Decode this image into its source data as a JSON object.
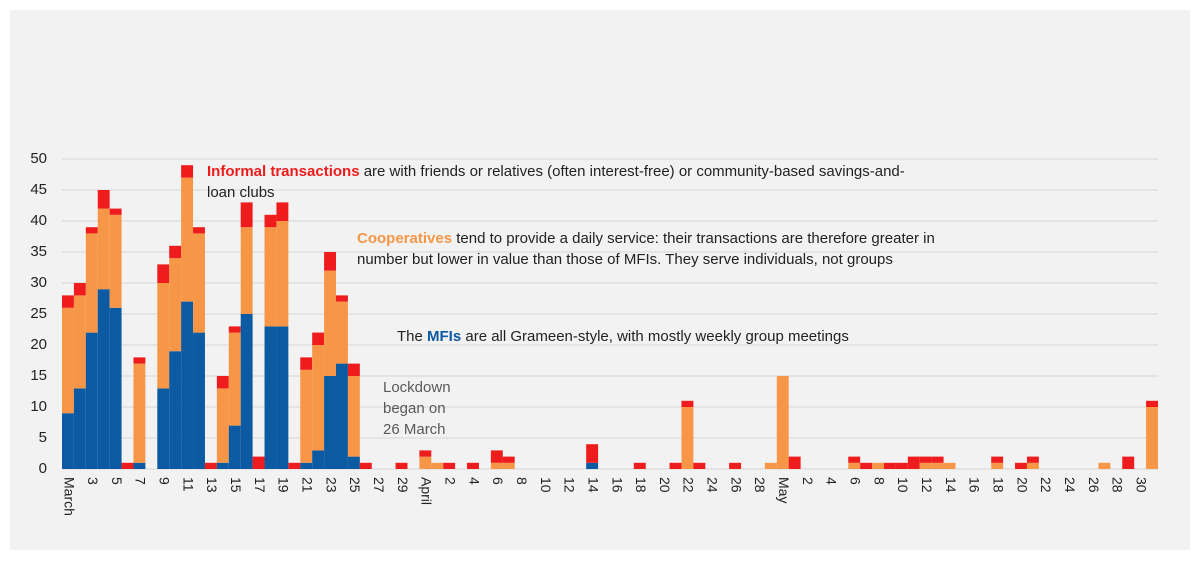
{
  "chart_data": {
    "type": "stacked-bar",
    "categories": [
      "March",
      null,
      "3",
      null,
      "5",
      null,
      "7",
      null,
      "9",
      null,
      "11",
      null,
      "13",
      null,
      "15",
      null,
      "17",
      null,
      "19",
      null,
      "21",
      null,
      "23",
      null,
      "25",
      null,
      "27",
      null,
      "29",
      null,
      "April",
      null,
      "2",
      null,
      "4",
      null,
      "6",
      null,
      "8",
      null,
      "10",
      null,
      "12",
      null,
      "14",
      null,
      "16",
      null,
      "18",
      null,
      "20",
      null,
      "22",
      null,
      "24",
      null,
      "26",
      null,
      "28",
      null,
      "May",
      null,
      "2",
      null,
      "4",
      null,
      "6",
      null,
      "8",
      null,
      "10",
      null,
      "12",
      null,
      "14",
      null,
      "16",
      null,
      "18",
      null,
      "20",
      null,
      "22",
      null,
      "24",
      null,
      "26",
      null,
      "28",
      null,
      "30",
      null
    ],
    "series": [
      {
        "name": "MFIs",
        "color": "#0b5aa2",
        "values": [
          9,
          13,
          22,
          29,
          26,
          0,
          1,
          0,
          13,
          19,
          27,
          22,
          0,
          1,
          7,
          25,
          0,
          23,
          23,
          0,
          1,
          3,
          15,
          17,
          2,
          0,
          0,
          0,
          0,
          0,
          0,
          0,
          0,
          0,
          0,
          0,
          0,
          0,
          0,
          0,
          0,
          0,
          0,
          0,
          1,
          0,
          0,
          0,
          0,
          0,
          0,
          0,
          0,
          0,
          0,
          0,
          0,
          0,
          0,
          0,
          0,
          0,
          0,
          0,
          0,
          0,
          0,
          0,
          0,
          0,
          0,
          0,
          0,
          0,
          0,
          0,
          0,
          0,
          0,
          0,
          0,
          0,
          0,
          0,
          0,
          0,
          0,
          0,
          0,
          0,
          0,
          0
        ]
      },
      {
        "name": "Cooperatives",
        "color": "#f79646",
        "values": [
          17,
          15,
          16,
          13,
          15,
          0,
          16,
          0,
          17,
          15,
          20,
          16,
          0,
          12,
          15,
          14,
          0,
          16,
          17,
          0,
          15,
          17,
          17,
          10,
          13,
          0,
          0,
          0,
          0,
          0,
          2,
          1,
          0,
          0,
          0,
          0,
          1,
          1,
          0,
          0,
          0,
          0,
          0,
          0,
          0,
          0,
          0,
          0,
          0,
          0,
          0,
          0,
          10,
          0,
          0,
          0,
          0,
          0,
          0,
          1,
          15,
          0,
          0,
          0,
          0,
          0,
          1,
          0,
          1,
          0,
          0,
          0,
          1,
          1,
          1,
          0,
          0,
          0,
          1,
          0,
          0,
          1,
          0,
          0,
          0,
          0,
          0,
          1,
          0,
          0,
          0,
          10
        ]
      },
      {
        "name": "Informal transactions",
        "color": "#ee1c1c",
        "values": [
          2,
          2,
          1,
          3,
          1,
          1,
          1,
          0,
          3,
          2,
          2,
          1,
          1,
          2,
          1,
          4,
          2,
          2,
          3,
          1,
          2,
          2,
          3,
          1,
          2,
          1,
          0,
          0,
          1,
          0,
          1,
          0,
          1,
          0,
          1,
          0,
          2,
          1,
          0,
          0,
          0,
          0,
          0,
          0,
          3,
          0,
          0,
          0,
          1,
          0,
          0,
          1,
          1,
          1,
          0,
          0,
          1,
          0,
          0,
          0,
          0,
          2,
          0,
          0,
          0,
          0,
          1,
          1,
          0,
          1,
          1,
          2,
          1,
          1,
          0,
          0,
          0,
          0,
          1,
          0,
          1,
          1,
          0,
          0,
          0,
          0,
          0,
          0,
          0,
          2,
          0,
          1
        ]
      }
    ],
    "ylim": [
      0,
      50
    ],
    "yticks": [
      0,
      5,
      10,
      15,
      20,
      25,
      30,
      35,
      40,
      45,
      50
    ],
    "grid": true,
    "annotations": [
      {
        "text": [
          " are with friends or relatives (often interest-free) or community-based savings-and-",
          "loan clubs"
        ]
      },
      {
        "text": [
          " tend to provide a daily service: their transactions are therefore greater in",
          "number but lower in value than those of MFIs. They serve individuals, not groups"
        ]
      },
      {
        "before": "The ",
        "text": [
          " are all Grameen-style, with mostly weekly group meetings"
        ]
      },
      {
        "text": [
          "Lockdown",
          "began on",
          "26 March"
        ]
      }
    ]
  }
}
